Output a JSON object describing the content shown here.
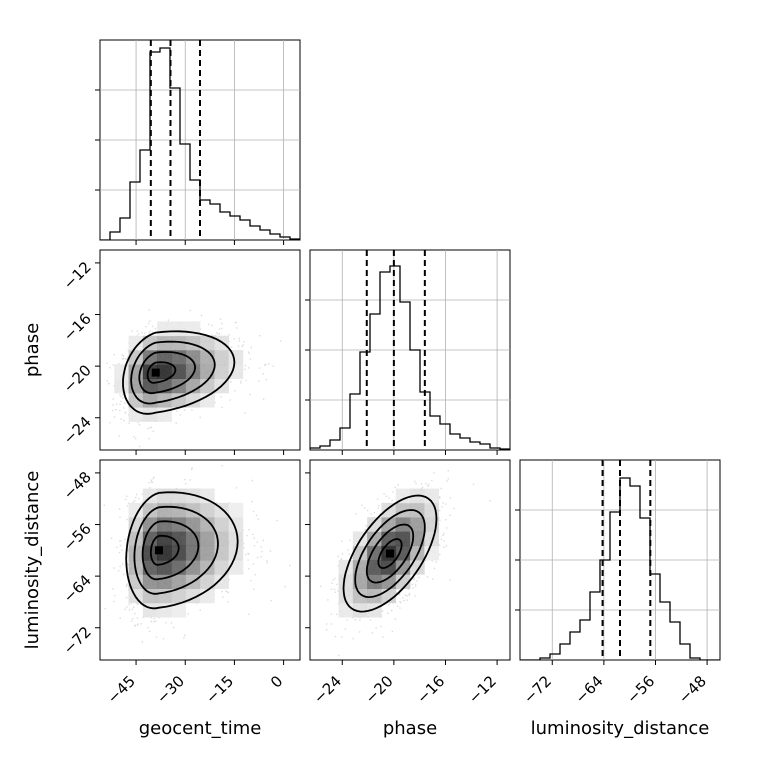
{
  "chart_data": {
    "type": "corner",
    "parameters": [
      "geocent_time",
      "phase",
      "luminosity_distance"
    ],
    "axis_labels": {
      "geocent_time": "geocent_time",
      "phase": "phase",
      "luminosity_distance": "luminosity_distance"
    },
    "ranges": {
      "geocent_time": [
        -56,
        5
      ],
      "phase": [
        -26.5,
        -11
      ],
      "luminosity_distance": [
        -77,
        -46
      ]
    },
    "ticks": {
      "geocent_time": [
        -45,
        -30,
        -15,
        0
      ],
      "phase": [
        -24,
        -20,
        -16,
        -12
      ],
      "luminosity_distance": [
        -72,
        -64,
        -56,
        -48
      ]
    },
    "tick_labels": {
      "geocent_time": [
        "−45",
        "−30",
        "−15",
        "0"
      ],
      "phase": [
        "−24",
        "−20",
        "−16",
        "−12"
      ],
      "luminosity_distance": [
        "−72",
        "−64",
        "−56",
        "−48"
      ]
    },
    "quantiles": {
      "geocent_time": [
        -40.5,
        -34.5,
        -25.5
      ],
      "phase": [
        -22.1,
        -20.0,
        -17.6
      ],
      "luminosity_distance": [
        -64.2,
        -61.5,
        -56.8
      ]
    },
    "histograms": {
      "geocent_time": {
        "range": [
          -56,
          5
        ],
        "bins": 20,
        "counts": [
          0.0,
          0.04,
          0.11,
          0.29,
          0.45,
          0.94,
          0.96,
          0.76,
          0.48,
          0.3,
          0.2,
          0.18,
          0.14,
          0.12,
          0.1,
          0.07,
          0.05,
          0.03,
          0.015,
          0.005
        ]
      },
      "phase": {
        "range": [
          -26.5,
          -11
        ],
        "bins": 20,
        "counts": [
          0.01,
          0.02,
          0.05,
          0.11,
          0.28,
          0.49,
          0.68,
          0.89,
          0.92,
          0.74,
          0.5,
          0.29,
          0.17,
          0.13,
          0.08,
          0.06,
          0.04,
          0.03,
          0.01,
          0.005
        ]
      },
      "luminosity_distance": {
        "range": [
          -77,
          -46
        ],
        "bins": 20,
        "counts": [
          0.0,
          0.0,
          0.01,
          0.03,
          0.08,
          0.14,
          0.2,
          0.34,
          0.5,
          0.74,
          0.91,
          0.87,
          0.71,
          0.43,
          0.29,
          0.19,
          0.08,
          0.01,
          0.0,
          0.0
        ]
      }
    },
    "posterior_2d": [
      {
        "x": "geocent_time",
        "y": "phase",
        "peak": [
          -39,
          -20.5
        ],
        "sigma": [
          5,
          1.6
        ],
        "correlation": 0.25,
        "tail_direction": "toward larger geocent_time"
      },
      {
        "x": "geocent_time",
        "y": "luminosity_distance",
        "peak": [
          -38,
          -60
        ],
        "sigma": [
          5,
          4.5
        ],
        "correlation": 0.15,
        "tail_direction": "toward larger geocent_time"
      },
      {
        "x": "phase",
        "y": "luminosity_distance",
        "peak": [
          -20.3,
          -60.5
        ],
        "sigma": [
          1.8,
          4.5
        ],
        "correlation": 0.6,
        "tail_direction": "none"
      }
    ],
    "contour_levels": 4,
    "grid": true,
    "style": {
      "hist_color": "#000000",
      "scatter_color": "#9a9a9a",
      "grid_color": "#b0b0b0",
      "quantile_line": "dashed"
    }
  }
}
